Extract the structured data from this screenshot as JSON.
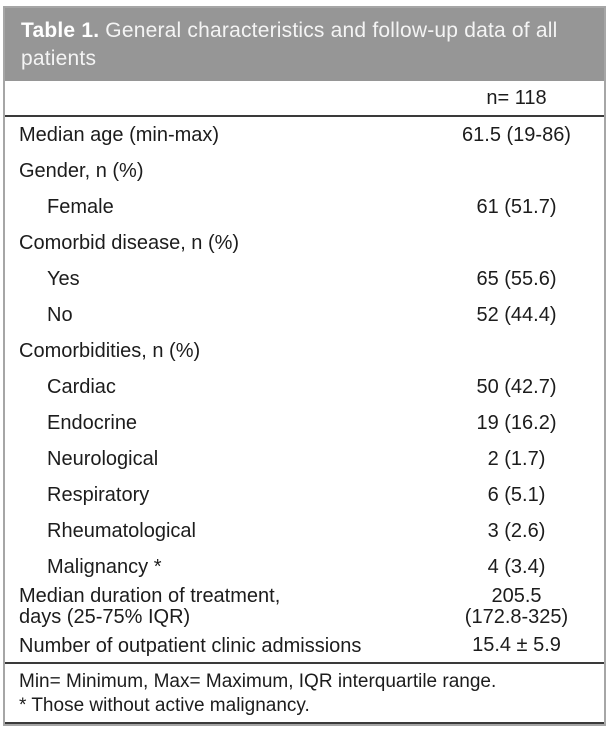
{
  "colors": {
    "header_bg": "#969696",
    "rule_dark": "#3a3a3a",
    "frame_gray": "#a6a6a6",
    "title_text": "#ffffff",
    "body_text": "#1c1c1c"
  },
  "table": {
    "title_prefix": "Table 1.",
    "title_rest": " General characteristics and follow-up data of all patients",
    "n_header": "n= 118",
    "rows": [
      {
        "label": "Median age (min-max)",
        "value": "61.5 (19-86)",
        "indent": false
      },
      {
        "label": "Gender, n (%)",
        "value": "",
        "indent": false
      },
      {
        "label": "Female",
        "value": "61 (51.7)",
        "indent": true
      },
      {
        "label": "Comorbid disease, n (%)",
        "value": "",
        "indent": false
      },
      {
        "label": "Yes",
        "value": "65 (55.6)",
        "indent": true
      },
      {
        "label": "No",
        "value": "52 (44.4)",
        "indent": true
      },
      {
        "label": "Comorbidities, n (%)",
        "value": "",
        "indent": false
      },
      {
        "label": "Cardiac",
        "value": "50 (42.7)",
        "indent": true
      },
      {
        "label": "Endocrine",
        "value": "19 (16.2)",
        "indent": true
      },
      {
        "label": "Neurological",
        "value": "2 (1.7)",
        "indent": true
      },
      {
        "label": "Respiratory",
        "value": "6 (5.1)",
        "indent": true
      },
      {
        "label": "Rheumatological",
        "value": "3 (2.6)",
        "indent": true
      },
      {
        "label": "Malignancy *",
        "value": "4 (3.4)",
        "indent": true
      },
      {
        "label": "Median duration of treatment,",
        "label2": "days (25-75% IQR)",
        "value": "205.5",
        "value2": "(172.8-325)",
        "indent": false,
        "tall": true
      },
      {
        "label": "Number of outpatient clinic admissions",
        "value": "15.4 ± 5.9",
        "indent": false,
        "last": true
      }
    ],
    "footnotes": [
      "Min= Minimum, Max= Maximum, IQR interquartile range.",
      "* Those without active malignancy."
    ]
  }
}
